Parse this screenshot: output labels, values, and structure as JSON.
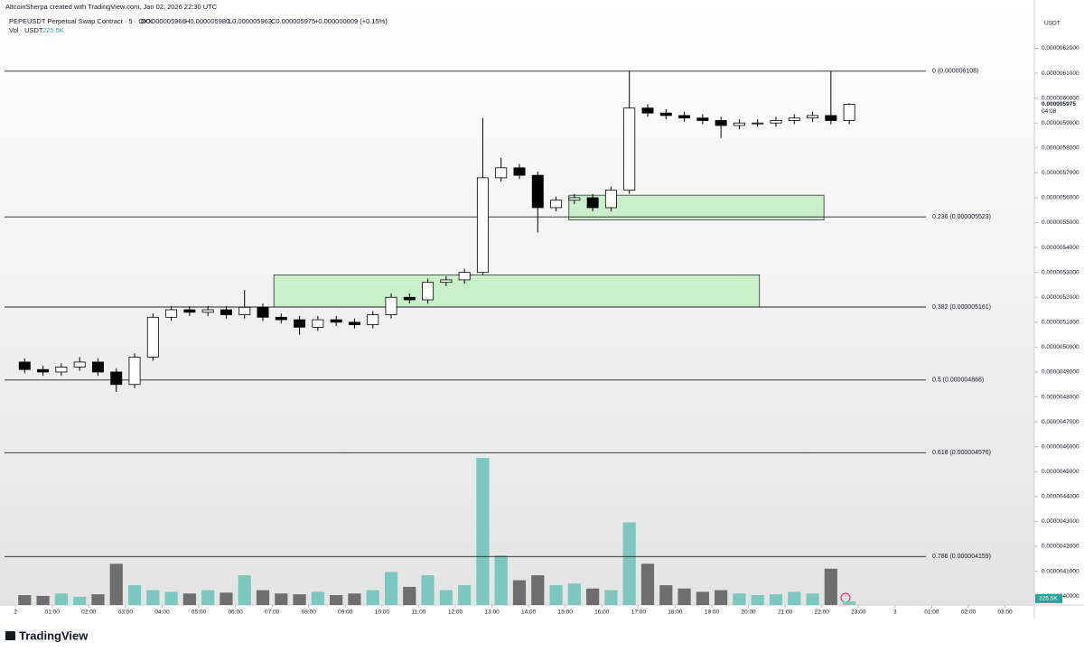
{
  "header": {
    "author": "AltcoinSherpa created with TradingView.com, Jan 02, 2026 22:30 UTC",
    "symbol": "PEPEUSDT Perpetual Swap Contract · 5 · OKX",
    "ohlc": [
      "O0.000005966",
      "H0.000005980",
      "L0.000005963",
      "C0.000005975"
    ],
    "change": "+0.000000009 (+0.15%)",
    "volume_title": "Vol · USDT"
  },
  "footer": {
    "logo": "TradingView"
  },
  "chart_data": {
    "type": "candlestick",
    "currency": "USDT",
    "xlim": [
      -0.3,
      27.8
    ],
    "xticks": [
      {
        "value": 0,
        "label": "2"
      },
      {
        "value": 1,
        "label": "01:00"
      },
      {
        "value": 2,
        "label": "02:00"
      },
      {
        "value": 3,
        "label": "03:00"
      },
      {
        "value": 4,
        "label": "04:00"
      },
      {
        "value": 5,
        "label": "05:00"
      },
      {
        "value": 6,
        "label": "06:00"
      },
      {
        "value": 7,
        "label": "07:00"
      },
      {
        "value": 8,
        "label": "08:00"
      },
      {
        "value": 9,
        "label": "09:00"
      },
      {
        "value": 10,
        "label": "10:00"
      },
      {
        "value": 11,
        "label": "11:00"
      },
      {
        "value": 12,
        "label": "12:00"
      },
      {
        "value": 13,
        "label": "13:00"
      },
      {
        "value": 14,
        "label": "14:00"
      },
      {
        "value": 15,
        "label": "15:00"
      },
      {
        "value": 16,
        "label": "16:00"
      },
      {
        "value": 17,
        "label": "17:00"
      },
      {
        "value": 18,
        "label": "18:00"
      },
      {
        "value": 19,
        "label": "19:00"
      },
      {
        "value": 20,
        "label": "20:00"
      },
      {
        "value": 21,
        "label": "21:00"
      },
      {
        "value": 22,
        "label": "22:00"
      },
      {
        "value": 23,
        "label": "23:00"
      },
      {
        "value": 24,
        "label": "3"
      },
      {
        "value": 25,
        "label": "01:00"
      },
      {
        "value": 26,
        "label": "02:00"
      },
      {
        "value": 27,
        "label": "03:00"
      }
    ],
    "ylim": [
      3.9643e-06,
      6.3214e-06
    ],
    "yticks": [
      {
        "value": 4e-06,
        "label": "0.0000040000"
      },
      {
        "value": 4.1e-06,
        "label": "0.0000041000"
      },
      {
        "value": 4.2e-06,
        "label": "0.0000042000"
      },
      {
        "value": 4.3e-06,
        "label": "0.0000043000"
      },
      {
        "value": 4.4e-06,
        "label": "0.0000044000"
      },
      {
        "value": 4.5e-06,
        "label": "0.0000045000"
      },
      {
        "value": 4.6e-06,
        "label": "0.0000046000"
      },
      {
        "value": 4.7e-06,
        "label": "0.0000047000"
      },
      {
        "value": 4.8e-06,
        "label": "0.0000048000"
      },
      {
        "value": 4.9e-06,
        "label": "0.0000049000"
      },
      {
        "value": 5e-06,
        "label": "0.0000050000"
      },
      {
        "value": 5.1e-06,
        "label": "0.0000051000"
      },
      {
        "value": 5.2e-06,
        "label": "0.0000052000"
      },
      {
        "value": 5.3e-06,
        "label": "0.0000053000"
      },
      {
        "value": 5.4e-06,
        "label": "0.0000054000"
      },
      {
        "value": 5.5e-06,
        "label": "0.0000055000"
      },
      {
        "value": 5.6e-06,
        "label": "0.0000056000"
      },
      {
        "value": 5.7e-06,
        "label": "0.0000057000"
      },
      {
        "value": 5.8e-06,
        "label": "0.0000058000"
      },
      {
        "value": 5.9e-06,
        "label": "0.0000059000"
      },
      {
        "value": 6e-06,
        "label": "0.0000060000"
      },
      {
        "value": 6.1e-06,
        "label": "0.0000061000"
      },
      {
        "value": 6.2e-06,
        "label": "0.0000062000"
      }
    ],
    "x": [
      0,
      0.5,
      1,
      1.5,
      2,
      2.5,
      3,
      3.5,
      4,
      4.5,
      5,
      5.5,
      6,
      6.5,
      7,
      7.5,
      8,
      8.5,
      9,
      9.5,
      10,
      10.5,
      11,
      11.5,
      12,
      12.5,
      13,
      13.5,
      14,
      14.5,
      15,
      15.5,
      16,
      16.5,
      17,
      17.5,
      18,
      18.5,
      19,
      19.5,
      20,
      20.5,
      21,
      21.5,
      22,
      22.5
    ],
    "open": [
      4.94e-06,
      4.91e-06,
      4.9e-06,
      4.92e-06,
      4.94e-06,
      4.9e-06,
      4.85e-06,
      4.96e-06,
      5.12e-06,
      5.15e-06,
      5.14e-06,
      5.15e-06,
      5.13e-06,
      5.16e-06,
      5.12e-06,
      5.11e-06,
      5.08e-06,
      5.11e-06,
      5.1e-06,
      5.09e-06,
      5.13e-06,
      5.2e-06,
      5.19e-06,
      5.26e-06,
      5.27e-06,
      5.3e-06,
      5.68e-06,
      5.72e-06,
      5.69e-06,
      5.56e-06,
      5.59e-06,
      5.6e-06,
      5.56e-06,
      5.63e-06,
      5.96e-06,
      5.94e-06,
      5.93e-06,
      5.92e-06,
      5.91e-06,
      5.89e-06,
      5.9e-06,
      5.9e-06,
      5.91e-06,
      5.92e-06,
      5.93e-06,
      5.91e-06
    ],
    "high": [
      4.955e-06,
      4.925e-06,
      4.935e-06,
      4.96e-06,
      4.955e-06,
      4.915e-06,
      4.975e-06,
      5.135e-06,
      5.165e-06,
      5.165e-06,
      5.165e-06,
      5.165e-06,
      5.23e-06,
      5.175e-06,
      5.135e-06,
      5.125e-06,
      5.125e-06,
      5.125e-06,
      5.115e-06,
      5.145e-06,
      5.215e-06,
      5.215e-06,
      5.275e-06,
      5.285e-06,
      5.315e-06,
      5.92e-06,
      5.76e-06,
      5.735e-06,
      5.705e-06,
      5.605e-06,
      5.615e-06,
      5.615e-06,
      5.645e-06,
      6.11e-06,
      5.975e-06,
      5.955e-06,
      5.945e-06,
      5.935e-06,
      5.925e-06,
      5.915e-06,
      5.915e-06,
      5.925e-06,
      5.935e-06,
      5.945e-06,
      6.108e-06,
      5.98e-06
    ],
    "low": [
      4.895e-06,
      4.885e-06,
      4.885e-06,
      4.905e-06,
      4.885e-06,
      4.82e-06,
      4.835e-06,
      4.945e-06,
      5.105e-06,
      5.125e-06,
      5.125e-06,
      5.115e-06,
      5.115e-06,
      5.105e-06,
      5.095e-06,
      5.05e-06,
      5.065e-06,
      5.085e-06,
      5.075e-06,
      5.075e-06,
      5.115e-06,
      5.175e-06,
      5.175e-06,
      5.245e-06,
      5.255e-06,
      5.29e-06,
      5.665e-06,
      5.675e-06,
      5.46e-06,
      5.545e-06,
      5.575e-06,
      5.545e-06,
      5.545e-06,
      5.615e-06,
      5.925e-06,
      5.915e-06,
      5.905e-06,
      5.895e-06,
      5.84e-06,
      5.875e-06,
      5.885e-06,
      5.885e-06,
      5.895e-06,
      5.905e-06,
      5.895e-06,
      5.895e-06
    ],
    "close": [
      4.91e-06,
      4.9e-06,
      4.92e-06,
      4.94e-06,
      4.9e-06,
      4.85e-06,
      4.96e-06,
      5.12e-06,
      5.15e-06,
      5.14e-06,
      5.15e-06,
      5.13e-06,
      5.16e-06,
      5.12e-06,
      5.11e-06,
      5.08e-06,
      5.11e-06,
      5.1e-06,
      5.09e-06,
      5.13e-06,
      5.2e-06,
      5.19e-06,
      5.26e-06,
      5.27e-06,
      5.3e-06,
      5.68e-06,
      5.72e-06,
      5.69e-06,
      5.56e-06,
      5.59e-06,
      5.6e-06,
      5.56e-06,
      5.63e-06,
      5.96e-06,
      5.94e-06,
      5.93e-06,
      5.92e-06,
      5.91e-06,
      5.89e-06,
      5.9e-06,
      5.9e-06,
      5.91e-06,
      5.92e-06,
      5.93e-06,
      5.91e-06,
      5.975e-06
    ],
    "volume": [
      600000,
      550000,
      700000,
      500000,
      650000,
      2500000,
      1200000,
      900000,
      800000,
      700000,
      900000,
      750000,
      1800000,
      900000,
      700000,
      650000,
      800000,
      600000,
      700000,
      900000,
      2000000,
      1100000,
      1800000,
      900000,
      1200000,
      8900000,
      3000000,
      1500000,
      1800000,
      1200000,
      1300000,
      1000000,
      900000,
      5000000,
      2500000,
      1200000,
      1000000,
      800000,
      900000,
      700000,
      600000,
      650000,
      800000,
      700000,
      2200000,
      225500
    ],
    "up_color": "#ffffff",
    "down_color": "#000000",
    "edge_color": "#000000",
    "volume_up_color": "#7cc8c0",
    "volume_down_color": "#6e6e6e",
    "vlim": [
      0,
      10000000
    ],
    "last_price": {
      "value": 5.975e-06,
      "label": "0.000005975"
    },
    "countdown": "04:08",
    "last_volume": {
      "value": 225500,
      "label": "225.5K"
    },
    "levels": [
      {
        "label": "0 (0.000006108)",
        "value": 6.108e-06
      },
      {
        "label": "0.236 (0.000005523)",
        "value": 5.523e-06
      },
      {
        "label": "0.382 (0.000005161)",
        "value": 5.161e-06
      },
      {
        "label": "0.5 (0.000004868)",
        "value": 4.868e-06
      },
      {
        "label": "0.618 (0.000004576)",
        "value": 4.576e-06
      },
      {
        "label": "0.786 (0.000004159)",
        "value": 4.159e-06
      }
    ],
    "zones": [
      {
        "x": [
          7.05,
          20.3
        ],
        "y": [
          5.161e-06,
          5.29e-06
        ],
        "color": "#c9f0c9"
      },
      {
        "x": [
          15.1,
          22.06
        ],
        "y": [
          5.511e-06,
          5.61e-06
        ],
        "color": "#c9f0c9"
      }
    ]
  }
}
